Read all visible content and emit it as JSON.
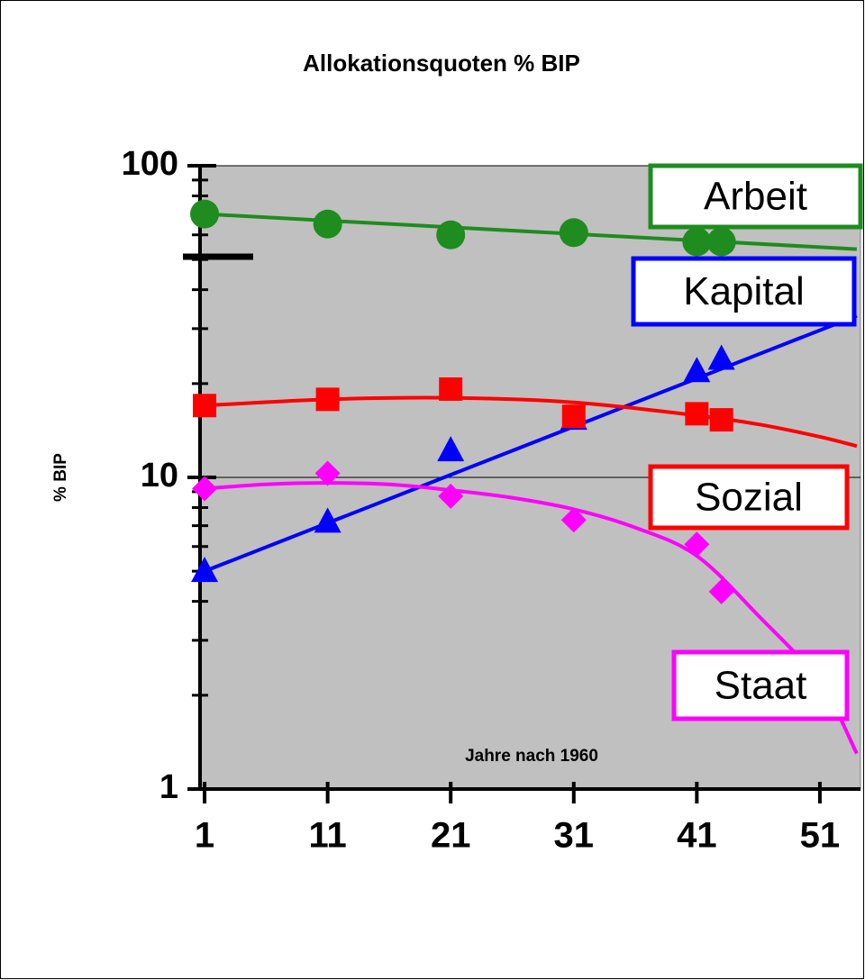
{
  "chart_data": {
    "type": "scatter",
    "title": "Allokationsquoten % BIP",
    "xlabel": "Jahre nach 1960",
    "ylabel": "% BIP",
    "x": [
      1,
      11,
      21,
      31,
      41,
      43
    ],
    "xlim": [
      0.63,
      54.3
    ],
    "xticks": [
      1,
      11,
      21,
      31,
      41,
      51
    ],
    "ylim": [
      1,
      100
    ],
    "yticks": [
      1,
      10,
      100
    ],
    "yminorticks": [
      2,
      3,
      4,
      5,
      6,
      7,
      8,
      9,
      20,
      30,
      40,
      50,
      60,
      70,
      80,
      90
    ],
    "log_y": true,
    "grid": true,
    "series": [
      {
        "name": "Arbeit",
        "color": "#1e8c1e",
        "marker": "circle",
        "values": [
          70,
          65,
          60,
          61,
          57,
          57
        ],
        "trend": {
          "x": [
            1,
            54
          ],
          "values": [
            70,
            54
          ]
        }
      },
      {
        "name": "Kapital",
        "color": "#0000ff",
        "marker": "triangle",
        "values": [
          5.0,
          7.2,
          12.2,
          15.4,
          21.9,
          24
        ],
        "trend": {
          "x": [
            1,
            54
          ],
          "values": [
            5,
            33
          ]
        }
      },
      {
        "name": "Sozial",
        "color": "#ff0000",
        "marker": "square",
        "values": [
          17,
          17.8,
          19.2,
          15.7,
          16,
          15.3
        ],
        "trend": {
          "x": [
            1,
            11,
            21,
            31,
            41,
            46,
            51,
            54
          ],
          "values": [
            17,
            17.8,
            18,
            17.4,
            15.8,
            14.8,
            13.5,
            12.6
          ]
        }
      },
      {
        "name": "Staat",
        "color": "#ff00ff",
        "marker": "diamond",
        "values": [
          9.2,
          10.3,
          8.7,
          7.3,
          6.1,
          4.3
        ],
        "trend": {
          "x": [
            1,
            6,
            11,
            16,
            21,
            26,
            31,
            36,
            41,
            46,
            51,
            54
          ],
          "values": [
            9.2,
            9.5,
            9.6,
            9.5,
            9.1,
            8.6,
            7.9,
            6.9,
            5.6,
            3.6,
            2.2,
            1.3
          ]
        }
      }
    ]
  }
}
